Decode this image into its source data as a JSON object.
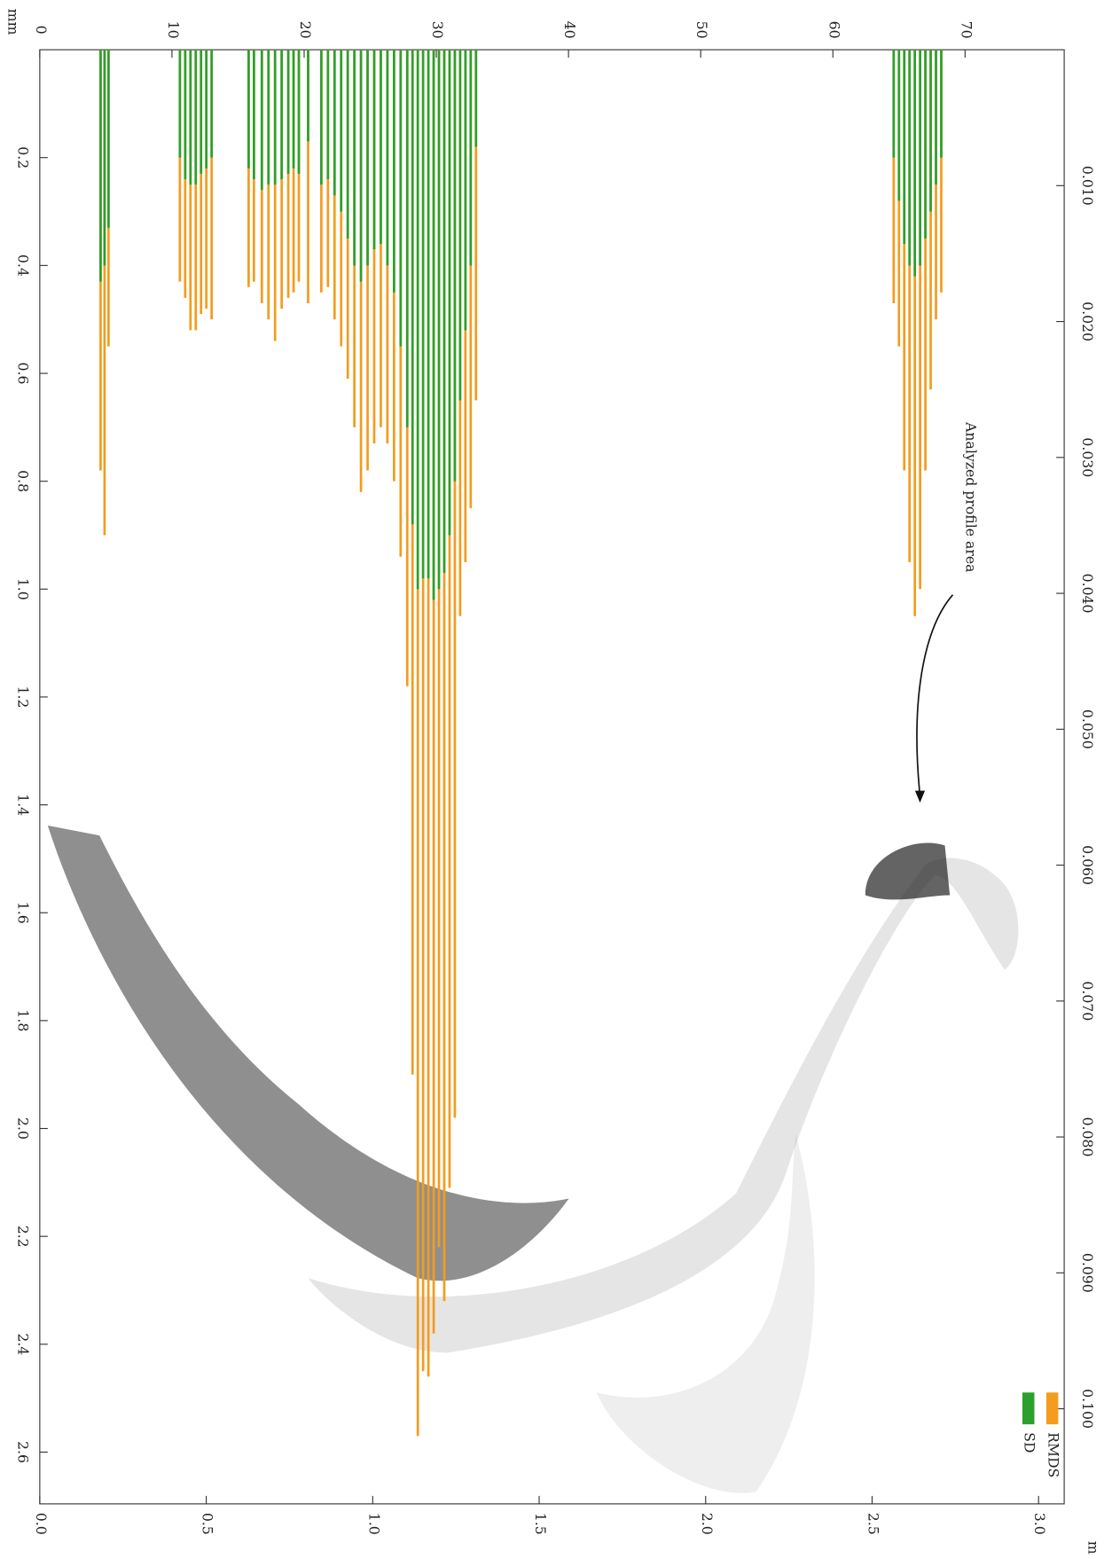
{
  "chart_data": {
    "type": "bar",
    "x": [
      4.6,
      4.9,
      5.2,
      10.6,
      11.0,
      11.4,
      11.8,
      12.2,
      12.6,
      13.0,
      15.8,
      16.2,
      16.8,
      17.3,
      17.8,
      18.3,
      18.8,
      19.2,
      19.6,
      20.3,
      21.3,
      21.8,
      22.3,
      22.8,
      23.3,
      23.8,
      24.3,
      24.8,
      25.3,
      25.8,
      26.3,
      26.8,
      27.3,
      27.8,
      28.2,
      28.6,
      29.0,
      29.4,
      29.8,
      30.2,
      30.6,
      31.0,
      31.4,
      31.8,
      32.2,
      32.6,
      33.0,
      64.6,
      65.0,
      65.4,
      65.8,
      66.2,
      66.6,
      67.0,
      67.4,
      67.8,
      68.2
    ],
    "series": [
      {
        "name": "RMDS",
        "color": "#f39c1e",
        "values": [
          0.78,
          0.9,
          0.55,
          0.43,
          0.46,
          0.52,
          0.52,
          0.49,
          0.48,
          0.5,
          0.44,
          0.43,
          0.47,
          0.5,
          0.54,
          0.48,
          0.46,
          0.45,
          0.43,
          0.47,
          0.45,
          0.44,
          0.5,
          0.55,
          0.61,
          0.7,
          0.82,
          0.78,
          0.73,
          0.7,
          0.73,
          0.8,
          0.94,
          1.18,
          1.9,
          2.57,
          2.45,
          2.46,
          2.38,
          2.22,
          2.32,
          2.11,
          1.98,
          1.05,
          0.95,
          0.85,
          0.65,
          0.47,
          0.55,
          0.78,
          0.95,
          1.05,
          1.0,
          0.78,
          0.63,
          0.5,
          0.45
        ]
      },
      {
        "name": "SD",
        "color": "#2ca02c",
        "values": [
          0.43,
          0.4,
          0.33,
          0.2,
          0.24,
          0.25,
          0.25,
          0.23,
          0.22,
          0.2,
          0.22,
          0.24,
          0.26,
          0.25,
          0.25,
          0.24,
          0.23,
          0.22,
          0.23,
          0.17,
          0.25,
          0.24,
          0.27,
          0.3,
          0.35,
          0.4,
          0.43,
          0.4,
          0.37,
          0.36,
          0.4,
          0.45,
          0.55,
          0.7,
          0.88,
          1.0,
          0.98,
          0.98,
          1.02,
          1.0,
          0.97,
          0.9,
          0.8,
          0.65,
          0.52,
          0.4,
          0.18,
          0.2,
          0.28,
          0.36,
          0.4,
          0.42,
          0.4,
          0.35,
          0.3,
          0.25,
          0.2
        ]
      }
    ],
    "xlim": [
      0,
      77.5
    ],
    "xticks": [
      0,
      10,
      20,
      30,
      40,
      50,
      60,
      70
    ],
    "x2lim": [
      0,
      3.077
    ],
    "x2ticks": [
      {
        "value": 0,
        "label": "0.0"
      },
      0.5,
      {
        "value": 1,
        "label": "1.0"
      },
      1.5,
      {
        "value": 2,
        "label": "2.0"
      },
      2.5,
      {
        "value": 3,
        "label": "3.0"
      }
    ],
    "ylim": [
      0,
      2.696
    ],
    "yticks": [
      0.2,
      0.4,
      0.6,
      0.8,
      {
        "value": 1,
        "label": "1.0"
      },
      1.2,
      1.4,
      1.6,
      1.8,
      {
        "value": 2,
        "label": "2.0"
      },
      2.2,
      2.4,
      2.6
    ],
    "y2lim": [
      0,
      0.107
    ],
    "y2ticks": [
      {
        "value": 0.01,
        "label": "0.010"
      },
      {
        "value": 0.02,
        "label": "0.020"
      },
      {
        "value": 0.03,
        "label": "0.030"
      },
      {
        "value": 0.04,
        "label": "0.040"
      },
      {
        "value": 0.05,
        "label": "0.050"
      },
      {
        "value": 0.06,
        "label": "0.060"
      },
      {
        "value": 0.07,
        "label": "0.070"
      },
      {
        "value": 0.08,
        "label": "0.080"
      },
      {
        "value": 0.09,
        "label": "0.090"
      },
      {
        "value": 0.1,
        "label": "0.100"
      }
    ],
    "ylabel": "mm",
    "y2label": "m",
    "annotation": "Analyzed profile area",
    "legend": "bottom-right"
  }
}
